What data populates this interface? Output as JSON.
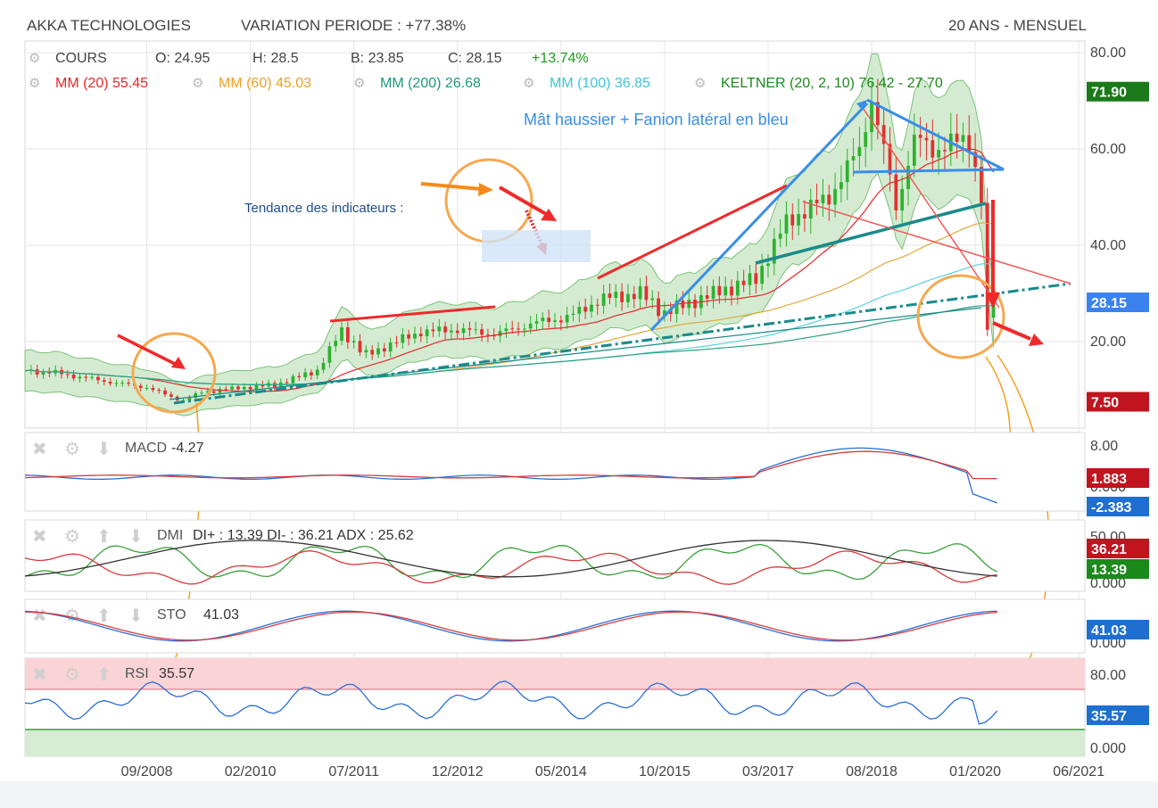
{
  "header": {
    "title": "AKKA TECHNOLOGIES",
    "variation": "VARIATION PERIODE : +77.38%",
    "period": "20 ANS - MENSUEL"
  },
  "ohlc": {
    "label": "COURS",
    "open": "O: 24.95",
    "high": "H: 28.5",
    "low": "B: 23.85",
    "close": "C: 28.15",
    "change": "+13.74%"
  },
  "overlays": [
    {
      "label": "MM (20)",
      "value": "55.45",
      "color": "#e8262a"
    },
    {
      "label": "MM (60)",
      "value": "45.03",
      "color": "#f0a020"
    },
    {
      "label": "MM (200)",
      "value": "26.68",
      "color": "#1a9a7a"
    },
    {
      "label": "MM (100)",
      "value": "36.85",
      "color": "#3cc6d8"
    },
    {
      "label": "KELTNER (20, 2, 10)",
      "value": "76.42 - 27.70",
      "color": "#1a8a1a"
    }
  ],
  "annotations": {
    "pattern": "Mât haussier + Fanion latéral en bleu",
    "indicators": "Tendance des indicateurs :"
  },
  "price_axis": {
    "ticks": [
      "80.00",
      "60.00",
      "40.00",
      "20.00"
    ],
    "badges": [
      {
        "text": "71.90",
        "color": "#1a7a1a"
      },
      {
        "text": "28.15",
        "color": "#3b82f0"
      },
      {
        "text": "7.50",
        "color": "#c0141e"
      }
    ]
  },
  "x_axis": {
    "labels": [
      "09/2008",
      "02/2010",
      "07/2011",
      "12/2012",
      "05/2014",
      "10/2015",
      "03/2017",
      "08/2018",
      "01/2020",
      "06/2021"
    ]
  },
  "panels": {
    "macd": {
      "label": "MACD",
      "value": "-4.27",
      "ticks": [
        "8.00",
        "0.000"
      ],
      "badges": [
        {
          "text": "1.883",
          "color": "#c0141e"
        },
        {
          "text": "-2.383",
          "color": "#1f6fd0"
        }
      ]
    },
    "dmi": {
      "label": "DMI",
      "value": "DI+ : 13.39 DI- : 36.21 ADX : 25.62",
      "ticks": [
        "50.00",
        "0.000"
      ],
      "badges": [
        {
          "text": "36.21",
          "color": "#c0141e"
        },
        {
          "text": "13.39",
          "color": "#1a8a1a"
        }
      ]
    },
    "sto": {
      "label": "STO",
      "value": "41.03",
      "ticks": [
        "0.000"
      ],
      "badges": [
        {
          "text": "41.03",
          "color": "#1f6fd0"
        }
      ]
    },
    "rsi": {
      "label": "RSI",
      "value": "35.57",
      "ticks": [
        "80.00",
        "0.000"
      ],
      "badges": [
        {
          "text": "35.57",
          "color": "#1f6fd0"
        }
      ]
    }
  },
  "chart_data": {
    "type": "candlestick",
    "frequency": "monthly",
    "x_range": [
      "2007-01",
      "2021-06"
    ],
    "ylim": [
      0,
      82
    ],
    "close_series": [
      [
        "2007-01",
        14.0
      ],
      [
        "2007-06",
        13.5
      ],
      [
        "2008-01",
        12.0
      ],
      [
        "2008-06",
        11.0
      ],
      [
        "2008-09",
        10.5
      ],
      [
        "2009-01",
        8.5
      ],
      [
        "2009-03",
        7.8
      ],
      [
        "2009-06",
        9.5
      ],
      [
        "2010-01",
        10.5
      ],
      [
        "2010-06",
        11.0
      ],
      [
        "2011-01",
        14.0
      ],
      [
        "2011-05",
        22.5
      ],
      [
        "2011-09",
        17.0
      ],
      [
        "2012-01",
        19.5
      ],
      [
        "2012-06",
        22.0
      ],
      [
        "2012-12",
        22.5
      ],
      [
        "2013-06",
        21.5
      ],
      [
        "2014-01",
        24.0
      ],
      [
        "2014-06",
        25.0
      ],
      [
        "2014-12",
        29.0
      ],
      [
        "2015-06",
        30.0
      ],
      [
        "2015-10",
        26.0
      ],
      [
        "2016-06",
        30.0
      ],
      [
        "2017-01",
        33.0
      ],
      [
        "2017-06",
        45.0
      ],
      [
        "2018-01",
        50.0
      ],
      [
        "2018-06",
        60.0
      ],
      [
        "2018-08",
        70.5
      ],
      [
        "2018-12",
        48.0
      ],
      [
        "2019-03",
        62.0
      ],
      [
        "2019-06",
        60.0
      ],
      [
        "2019-09",
        61.0
      ],
      [
        "2019-12",
        62.0
      ],
      [
        "2020-02",
        50.0
      ],
      [
        "2020-03",
        20.0
      ],
      [
        "2020-04",
        28.15
      ]
    ],
    "last": {
      "open": 24.95,
      "high": 28.5,
      "low": 23.85,
      "close": 28.15,
      "change_pct": 13.74
    },
    "moving_averages": {
      "MM (20)": 55.45,
      "MM (60)": 45.03,
      "MM (200)": 26.68,
      "MM (100)": 36.85
    },
    "keltner": {
      "upper": 76.42,
      "lower": 27.7
    },
    "indicators": {
      "MACD": {
        "value": -4.27,
        "signal": 1.883,
        "histogram": -2.383
      },
      "DMI": {
        "di_plus": 13.39,
        "di_minus": 36.21,
        "adx": 25.62
      },
      "STO": 41.03,
      "RSI": 35.57
    }
  }
}
